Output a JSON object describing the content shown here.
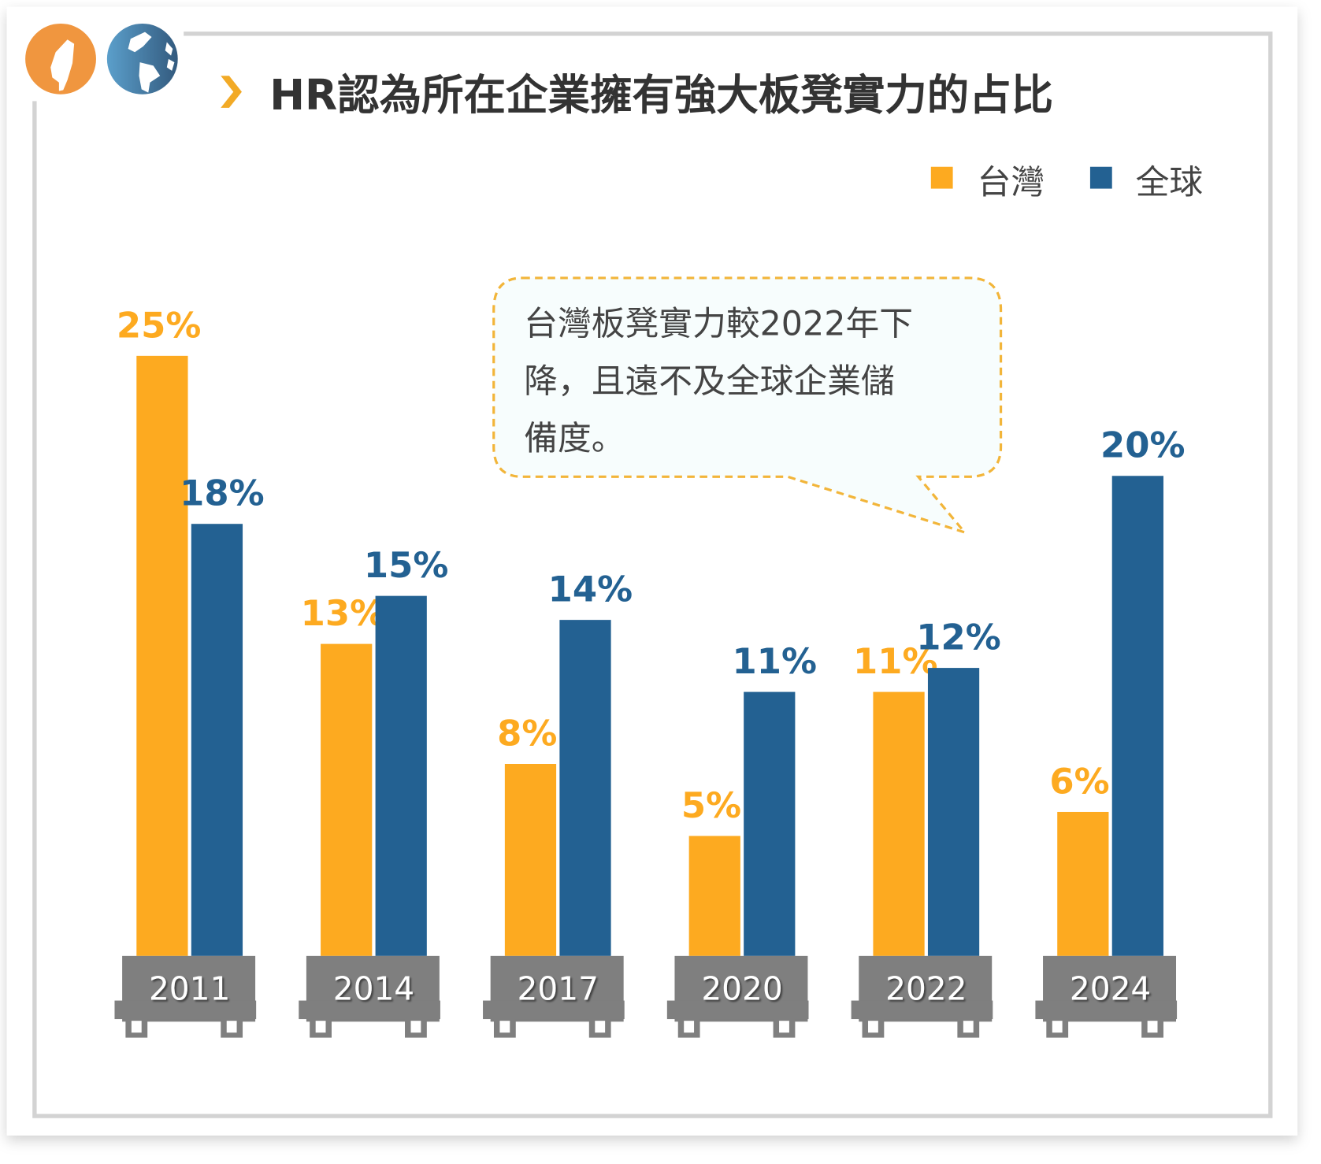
{
  "colors": {
    "taiwan": "#fdaa20",
    "global": "#236192",
    "cart": "#7f7f7f",
    "title_chevron": "#f2aa26"
  },
  "icons": [
    "taiwan-map-icon",
    "globe-icon"
  ],
  "chart_data": {
    "type": "bar",
    "title": "HR認為所在企業擁有強大板凳實力的占比",
    "categories": [
      "2011",
      "2014",
      "2017",
      "2020",
      "2022",
      "2024"
    ],
    "series": [
      {
        "name": "台灣",
        "values": [
          25,
          13,
          8,
          5,
          11,
          6
        ],
        "labels": [
          "25%",
          "13%",
          "8%",
          "5%",
          "11%",
          "6%"
        ]
      },
      {
        "name": "全球",
        "values": [
          18,
          15,
          14,
          11,
          12,
          20
        ],
        "labels": [
          "18%",
          "15%",
          "14%",
          "11%",
          "12%",
          "20%"
        ]
      }
    ],
    "unit": "%",
    "ylim": [
      0,
      25
    ],
    "grid": false,
    "legend_position": "top-right",
    "annotation": [
      "台灣板凳實力較2022年下",
      "降，且遠不及全球企業儲",
      "備度。"
    ]
  }
}
